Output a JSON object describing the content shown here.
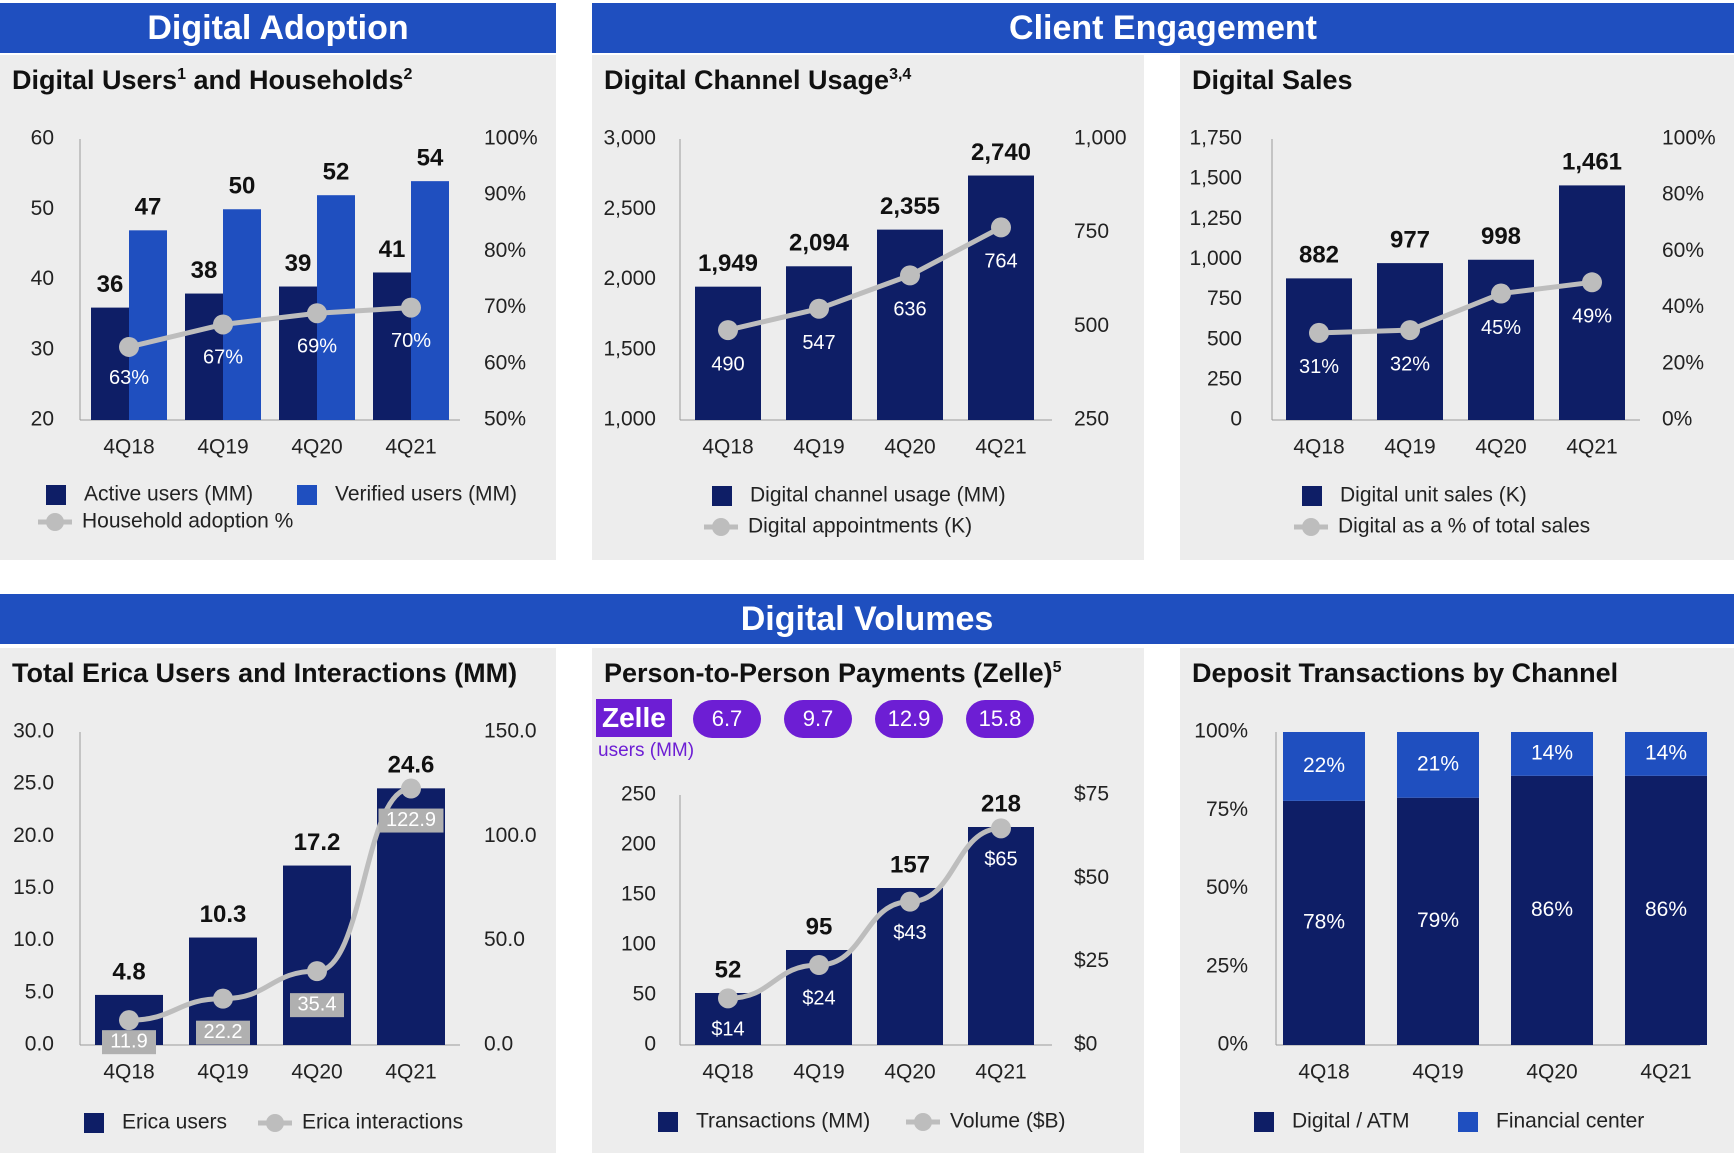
{
  "banners": {
    "digital_adoption": "Digital Adoption",
    "client_engagement": "Client Engagement",
    "digital_volumes": "Digital Volumes"
  },
  "zelle": {
    "logo": "Zelle",
    "users_label": "users (MM)",
    "users": [
      "6.7",
      "9.7",
      "12.9",
      "15.8"
    ]
  },
  "chart_data": [
    {
      "id": "users",
      "type": "bar",
      "title": "Digital Users",
      "title_sup1": "1",
      "title_mid": " and Households",
      "title_sup2": "2",
      "categories": [
        "4Q18",
        "4Q19",
        "4Q20",
        "4Q21"
      ],
      "series": [
        {
          "name": "Active users (MM)",
          "values": [
            36,
            38,
            39,
            41
          ],
          "color": "#0e1e66",
          "label_color": "#111111"
        },
        {
          "name": "Verified users (MM)",
          "values": [
            47,
            50,
            52,
            54
          ],
          "color": "#1f4fbf",
          "label_color": "#111111"
        }
      ],
      "line": {
        "name": "Household adoption %",
        "values": [
          63,
          67,
          69,
          70
        ],
        "labels": [
          "63%",
          "67%",
          "69%",
          "70%"
        ]
      },
      "y_left": {
        "min": 20,
        "max": 60,
        "ticks": [
          "60",
          "50",
          "40",
          "30",
          "20"
        ]
      },
      "y_right": {
        "min": 50,
        "max": 100,
        "ticks": [
          "100%",
          "90%",
          "80%",
          "70%",
          "60%",
          "50%"
        ]
      },
      "legend": [
        "Active users (MM)",
        "Verified users (MM)",
        "Household adoption %"
      ]
    },
    {
      "id": "channel",
      "type": "bar",
      "title": "Digital Channel Usage",
      "title_sup1": "3,4",
      "categories": [
        "4Q18",
        "4Q19",
        "4Q20",
        "4Q21"
      ],
      "series": [
        {
          "name": "Digital channel usage (MM)",
          "values": [
            1949,
            2094,
            2355,
            2740
          ],
          "labels": [
            "1,949",
            "2,094",
            "2,355",
            "2,740"
          ],
          "color": "#0e1e66"
        }
      ],
      "line": {
        "name": "Digital appointments (K)",
        "values": [
          490,
          547,
          636,
          764
        ],
        "labels": [
          "490",
          "547",
          "636",
          "764"
        ]
      },
      "y_left": {
        "min": 1000,
        "max": 3000,
        "ticks": [
          "3,000",
          "2,500",
          "2,000",
          "1,500",
          "1,000"
        ]
      },
      "y_right": {
        "min": 250,
        "max": 1000,
        "ticks": [
          "1,000",
          "750",
          "500",
          "250"
        ]
      },
      "legend": [
        "Digital channel usage (MM)",
        "Digital appointments (K)"
      ]
    },
    {
      "id": "sales",
      "type": "bar",
      "title": "Digital Sales",
      "categories": [
        "4Q18",
        "4Q19",
        "4Q20",
        "4Q21"
      ],
      "series": [
        {
          "name": "Digital unit sales (K)",
          "values": [
            882,
            977,
            998,
            1461
          ],
          "labels": [
            "882",
            "977",
            "998",
            "1,461"
          ],
          "color": "#0e1e66"
        }
      ],
      "line": {
        "name": "Digital as a % of total sales",
        "values": [
          31,
          32,
          45,
          49
        ],
        "labels": [
          "31%",
          "32%",
          "45%",
          "49%"
        ]
      },
      "y_left": {
        "min": 0,
        "max": 1750,
        "ticks": [
          "1,750",
          "1,500",
          "1,250",
          "1,000",
          "750",
          "500",
          "250",
          "0"
        ]
      },
      "y_right": {
        "min": 0,
        "max": 100,
        "ticks": [
          "100%",
          "80%",
          "60%",
          "40%",
          "20%",
          "0%"
        ]
      },
      "legend": [
        "Digital unit sales (K)",
        "Digital as a % of total sales"
      ]
    },
    {
      "id": "erica",
      "type": "bar",
      "title": "Total Erica Users and Interactions (MM)",
      "categories": [
        "4Q18",
        "4Q19",
        "4Q20",
        "4Q21"
      ],
      "series": [
        {
          "name": "Erica users",
          "values": [
            4.8,
            10.3,
            17.2,
            24.6
          ],
          "labels": [
            "4.8",
            "10.3",
            "17.2",
            "24.6"
          ],
          "color": "#0e1e66"
        }
      ],
      "line": {
        "name": "Erica interactions",
        "values": [
          11.9,
          22.2,
          35.4,
          122.9
        ],
        "labels": [
          "11.9",
          "22.2",
          "35.4",
          "122.9"
        ]
      },
      "y_left": {
        "min": 0,
        "max": 30,
        "ticks": [
          "30.0",
          "25.0",
          "20.0",
          "15.0",
          "10.0",
          "5.0",
          "0.0"
        ]
      },
      "y_right": {
        "min": 0,
        "max": 150,
        "ticks": [
          "150.0",
          "100.0",
          "50.0",
          "0.0"
        ]
      },
      "legend": [
        "Erica users",
        "Erica interactions"
      ]
    },
    {
      "id": "zelle",
      "type": "bar",
      "title": "Person-to-Person Payments (Zelle)",
      "title_sup1": "5",
      "categories": [
        "4Q18",
        "4Q19",
        "4Q20",
        "4Q21"
      ],
      "series": [
        {
          "name": "Transactions (MM)",
          "values": [
            52,
            95,
            157,
            218
          ],
          "labels": [
            "52",
            "95",
            "157",
            "218"
          ],
          "color": "#0e1e66"
        }
      ],
      "line": {
        "name": "Volume ($B)",
        "values": [
          14,
          24,
          43,
          65
        ],
        "labels": [
          "$14",
          "$24",
          "$43",
          "$65"
        ]
      },
      "y_left": {
        "min": 0,
        "max": 250,
        "ticks": [
          "250",
          "200",
          "150",
          "100",
          "50",
          "0"
        ]
      },
      "y_right": {
        "min": 0,
        "max": 75,
        "ticks": [
          "$75",
          "$50",
          "$25",
          "$0"
        ]
      },
      "legend": [
        "Transactions (MM)",
        "Volume ($B)"
      ]
    },
    {
      "id": "deposit",
      "type": "bar",
      "stacked": true,
      "title": "Deposit Transactions by Channel",
      "categories": [
        "4Q18",
        "4Q19",
        "4Q20",
        "4Q21"
      ],
      "series": [
        {
          "name": "Digital / ATM",
          "values": [
            78,
            79,
            86,
            86
          ],
          "labels": [
            "78%",
            "79%",
            "86%",
            "86%"
          ],
          "color": "#0e1e66"
        },
        {
          "name": "Financial center",
          "values": [
            22,
            21,
            14,
            14
          ],
          "labels": [
            "22%",
            "21%",
            "14%",
            "14%"
          ],
          "color": "#1f4fbf"
        }
      ],
      "y_left": {
        "min": 0,
        "max": 100,
        "ticks": [
          "100%",
          "75%",
          "50%",
          "25%",
          "0%"
        ]
      },
      "legend": [
        "Digital / ATM",
        "Financial center"
      ]
    }
  ]
}
